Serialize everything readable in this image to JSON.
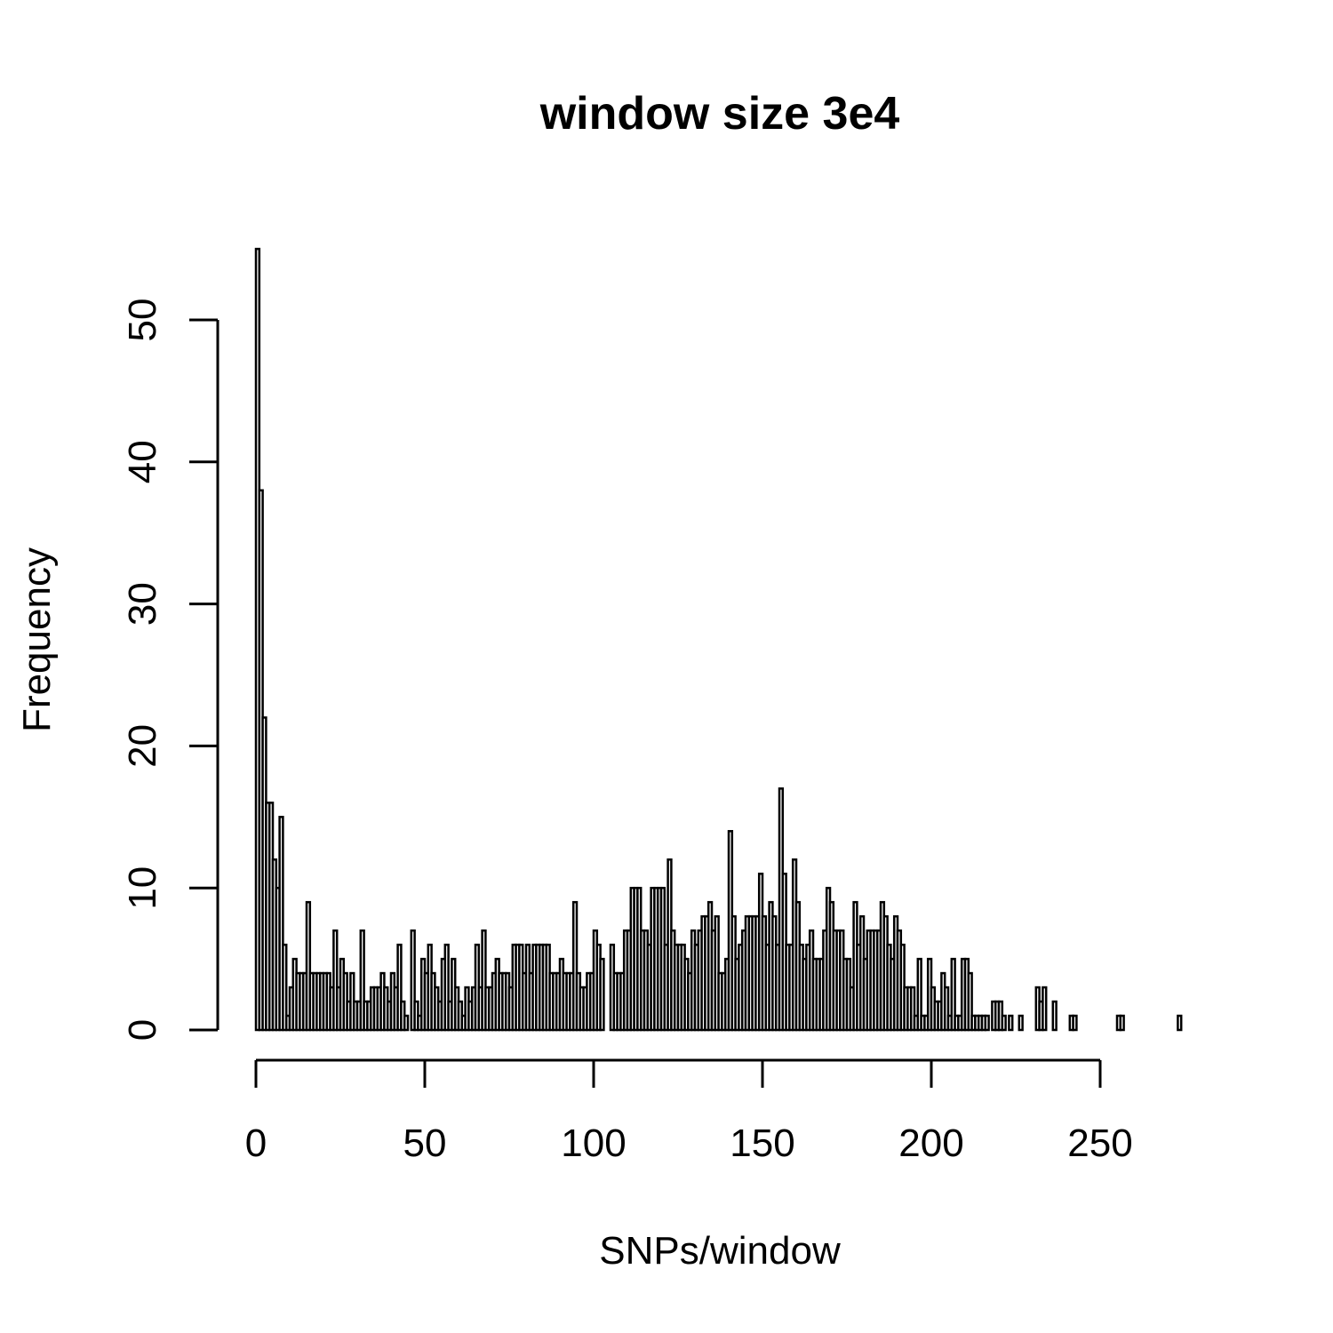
{
  "chart_data": {
    "type": "bar",
    "title": "window size 3e4",
    "xlabel": "SNPs/window",
    "ylabel": "Frequency",
    "xlim": [
      0,
      274
    ],
    "ylim": [
      0,
      55
    ],
    "bin_width": 1,
    "x_ticks": [
      0,
      50,
      100,
      150,
      200,
      250
    ],
    "y_ticks": [
      0,
      10,
      20,
      30,
      40,
      50
    ],
    "grid": false,
    "values": [
      55,
      38,
      22,
      16,
      16,
      12,
      10,
      15,
      6,
      1,
      3,
      5,
      4,
      4,
      4,
      9,
      4,
      4,
      4,
      4,
      4,
      4,
      3,
      7,
      3,
      5,
      4,
      2,
      4,
      2,
      2,
      7,
      2,
      2,
      3,
      3,
      3,
      4,
      3,
      2,
      4,
      3,
      6,
      2,
      1,
      0,
      7,
      2,
      1,
      5,
      4,
      6,
      4,
      3,
      2,
      5,
      6,
      2,
      5,
      3,
      2,
      1,
      3,
      2,
      3,
      6,
      3,
      7,
      3,
      3,
      4,
      5,
      4,
      4,
      4,
      3,
      6,
      6,
      6,
      4,
      6,
      4,
      6,
      6,
      6,
      6,
      6,
      4,
      4,
      4,
      5,
      4,
      4,
      4,
      9,
      4,
      3,
      3,
      4,
      4,
      7,
      6,
      5,
      0,
      0,
      6,
      4,
      4,
      4,
      7,
      7,
      10,
      10,
      10,
      7,
      7,
      6,
      10,
      10,
      10,
      10,
      6,
      12,
      7,
      6,
      6,
      6,
      5,
      4,
      7,
      6,
      7,
      8,
      8,
      9,
      7,
      8,
      4,
      4,
      5,
      14,
      8,
      5,
      6,
      7,
      8,
      8,
      8,
      8,
      11,
      8,
      6,
      9,
      8,
      6,
      17,
      11,
      6,
      6,
      12,
      9,
      6,
      5,
      6,
      7,
      5,
      5,
      5,
      7,
      10,
      9,
      7,
      7,
      7,
      5,
      5,
      3,
      9,
      6,
      8,
      5,
      7,
      7,
      7,
      7,
      9,
      8,
      6,
      5,
      8,
      7,
      6,
      3,
      3,
      3,
      1,
      5,
      1,
      1,
      5,
      3,
      2,
      2,
      4,
      3,
      1,
      5,
      1,
      1,
      5,
      5,
      4,
      1,
      1,
      1,
      1,
      1,
      0,
      2,
      2,
      2,
      1,
      0,
      1,
      0,
      0,
      1,
      0,
      0,
      0,
      0,
      3,
      2,
      3,
      0,
      0,
      2,
      0,
      0,
      0,
      0,
      1,
      1,
      0,
      0,
      0,
      0,
      0,
      0,
      0,
      0,
      0,
      0,
      0,
      0,
      1,
      1,
      0,
      0,
      0,
      0,
      0,
      0,
      0,
      0,
      0,
      0,
      0,
      0,
      0,
      0,
      0,
      0,
      1
    ]
  }
}
